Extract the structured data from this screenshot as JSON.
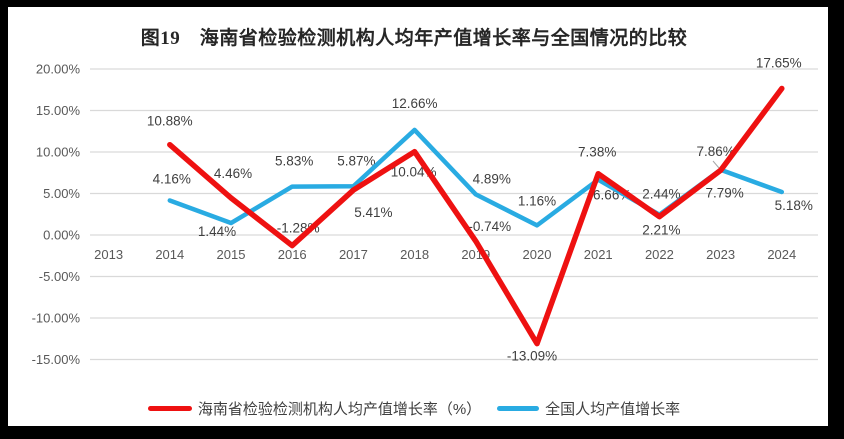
{
  "title": "图19　海南省检验检测机构人均年产值增长率与全国情况的比较",
  "colors": {
    "frame": "#000000",
    "background": "#ffffff",
    "grid": "#d9d9d9",
    "axis_text": "#595959",
    "data_label_text": "#3f3f3f",
    "title_text": "#262626",
    "hainan_red": "#ee1111",
    "national_blue": "#29abe2",
    "leader_line": "#a6a6a6"
  },
  "chart_data": {
    "type": "line",
    "title": "图19　海南省检验检测机构人均年产值增长率与全国情况的比较",
    "categories": [
      "2013",
      "2014",
      "2015",
      "2016",
      "2017",
      "2018",
      "2019",
      "2020",
      "2021",
      "2022",
      "2023",
      "2024"
    ],
    "y_axis": {
      "min": -15,
      "max": 20,
      "step": 5,
      "tick_values": [
        20,
        15,
        10,
        5,
        0,
        -5,
        -10,
        -15
      ],
      "tick_labels": [
        "20.00%",
        "15.00%",
        "10.00%",
        "5.00%",
        "0.00%",
        "-5.00%",
        "-10.00%",
        "-15.00%"
      ]
    },
    "grid": true,
    "legend_position": "bottom",
    "series": [
      {
        "name": "海南省检验检测机构人均产值增长率（%）",
        "color": "#ee1111",
        "values": [
          null,
          10.88,
          4.46,
          -1.28,
          5.41,
          10.04,
          -0.74,
          -13.09,
          7.38,
          2.21,
          7.79,
          17.65
        ],
        "point_labels": [
          null,
          "10.88%",
          "4.46%",
          "-1.28%",
          "5.41%",
          "10.04%",
          "-0.74%",
          "-13.09%",
          "7.38%",
          "2.21%",
          "7.79%",
          "17.65%"
        ]
      },
      {
        "name": "全国人均产值增长率",
        "color": "#29abe2",
        "values": [
          null,
          4.16,
          1.44,
          5.83,
          5.87,
          12.66,
          4.89,
          1.16,
          6.66,
          2.44,
          7.86,
          5.18
        ],
        "point_labels": [
          null,
          "4.16%",
          "1.44%",
          "5.83%",
          "5.87%",
          "12.66%",
          "4.89%",
          "1.16%",
          "6.66%",
          "2.44%",
          "7.86%",
          "5.18%"
        ]
      }
    ]
  }
}
